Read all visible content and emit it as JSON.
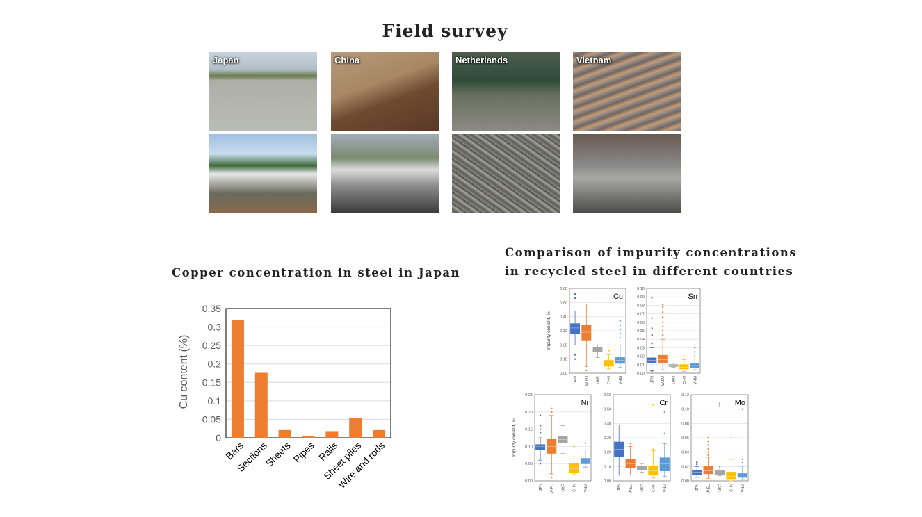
{
  "page": {
    "title": "Field survey",
    "photos": [
      {
        "caption": "Japan"
      },
      {
        "caption": "China"
      },
      {
        "caption": "Netherlands"
      },
      {
        "caption": "Vietnam"
      }
    ]
  },
  "left_section": {
    "title": "Copper concentration in steel in Japan"
  },
  "right_section": {
    "title_line1": "Comparison of impurity concentrations",
    "title_line2": "in recycled steel in different countries",
    "ylabel": "Impurity content, %"
  },
  "colors": {
    "bar": "#ED7D31",
    "JPN": "#4472C4",
    "WEU": "#ED7D31",
    "UKR": "#A5A5A5",
    "CHN": "#FFC000",
    "VNM": "#5B9BD5"
  },
  "chart_data": [
    {
      "type": "bar",
      "title": "",
      "categories": [
        "Bars",
        "Sections",
        "Sheets",
        "Pipes",
        "Rails",
        "Sheet piles",
        "Wire and rods"
      ],
      "values": [
        0.318,
        0.176,
        0.021,
        0.005,
        0.018,
        0.054,
        0.021
      ],
      "xlabel": "",
      "ylabel": "Cu content (%)",
      "ylim": [
        0,
        0.35
      ],
      "yticks": [
        "0",
        "0.05",
        "0.1",
        "0.15",
        "0.2",
        "0.25",
        "0.3",
        "0.35"
      ],
      "grid": true
    },
    {
      "type": "box",
      "label": "Cu",
      "ylim": [
        0,
        0.6
      ],
      "yticks": [
        "0.00",
        "0.10",
        "0.20",
        "0.30",
        "0.40",
        "0.50",
        "0.60"
      ],
      "categories": [
        "JPN",
        "WEU",
        "UKR",
        "CHN",
        "VNM"
      ],
      "boxes": [
        {
          "q1": 0.28,
          "median": 0.32,
          "q3": 0.35,
          "min": 0.2,
          "max": 0.44,
          "outliers": [
            0.53,
            0.56,
            0.1,
            0.13
          ]
        },
        {
          "q1": 0.23,
          "median": 0.29,
          "q3": 0.34,
          "min": 0.05,
          "max": 0.49,
          "outliers": [
            0.02,
            0.05
          ]
        },
        {
          "q1": 0.15,
          "median": 0.165,
          "q3": 0.18,
          "min": 0.11,
          "max": 0.2,
          "outliers": []
        },
        {
          "q1": 0.05,
          "median": 0.07,
          "q3": 0.09,
          "min": 0.03,
          "max": 0.13,
          "outliers": [
            0.16
          ]
        },
        {
          "q1": 0.07,
          "median": 0.09,
          "q3": 0.11,
          "min": 0.04,
          "max": 0.2,
          "outliers": [
            0.25,
            0.28,
            0.31,
            0.34,
            0.37
          ]
        }
      ]
    },
    {
      "type": "box",
      "label": "Sn",
      "ylim": [
        0,
        0.1
      ],
      "yticks": [
        "0.00",
        "0.01",
        "0.02",
        "0.03",
        "0.04",
        "0.05",
        "0.06",
        "0.07",
        "0.08",
        "0.09",
        "0.10"
      ],
      "categories": [
        "JPN",
        "WEU",
        "UKR",
        "CHN",
        "VNM"
      ],
      "boxes": [
        {
          "q1": 0.012,
          "median": 0.015,
          "q3": 0.018,
          "min": 0.003,
          "max": 0.03,
          "outliers": [
            0.035,
            0.045,
            0.053,
            0.065,
            0.089,
            0.002
          ]
        },
        {
          "q1": 0.012,
          "median": 0.016,
          "q3": 0.021,
          "min": 0.004,
          "max": 0.04,
          "outliers": [
            0.045,
            0.05,
            0.055,
            0.06,
            0.066,
            0.072,
            0.078,
            0.081
          ]
        },
        {
          "q1": 0.008,
          "median": 0.009,
          "q3": 0.01,
          "min": 0.007,
          "max": 0.012,
          "outliers": []
        },
        {
          "q1": 0.005,
          "median": 0.007,
          "q3": 0.01,
          "min": 0.002,
          "max": 0.016,
          "outliers": [
            0.02
          ]
        },
        {
          "q1": 0.007,
          "median": 0.009,
          "q3": 0.011,
          "min": 0.004,
          "max": 0.017,
          "outliers": [
            0.02,
            0.025,
            0.03
          ]
        }
      ]
    },
    {
      "type": "box",
      "label": "Ni",
      "ylim": [
        0,
        0.25
      ],
      "yticks": [
        "0.00",
        "0.05",
        "0.10",
        "0.15",
        "0.20",
        "0.25"
      ],
      "categories": [
        "JPN",
        "WEU",
        "UKR",
        "CHN",
        "VNM"
      ],
      "boxes": [
        {
          "q1": 0.09,
          "median": 0.1,
          "q3": 0.105,
          "min": 0.06,
          "max": 0.125,
          "outliers": [
            0.14,
            0.15,
            0.16,
            0.19,
            0.05
          ]
        },
        {
          "q1": 0.08,
          "median": 0.1,
          "q3": 0.12,
          "min": 0.02,
          "max": 0.19,
          "outliers": [
            0.2,
            0.21,
            0.01
          ]
        },
        {
          "q1": 0.11,
          "median": 0.12,
          "q3": 0.13,
          "min": 0.08,
          "max": 0.16,
          "outliers": []
        },
        {
          "q1": 0.025,
          "median": 0.035,
          "q3": 0.05,
          "min": 0.02,
          "max": 0.07,
          "outliers": [
            0.1
          ]
        },
        {
          "q1": 0.05,
          "median": 0.058,
          "q3": 0.065,
          "min": 0.04,
          "max": 0.09,
          "outliers": [
            0.11
          ]
        }
      ]
    },
    {
      "type": "box",
      "label": "Cr",
      "ylim": [
        0,
        0.6
      ],
      "yticks": [
        "0.00",
        "0.10",
        "0.20",
        "0.30",
        "0.40",
        "0.50",
        "0.60"
      ],
      "categories": [
        "JPN",
        "WEU",
        "UKR",
        "CHN",
        "VNM"
      ],
      "boxes": [
        {
          "q1": 0.17,
          "median": 0.22,
          "q3": 0.27,
          "min": 0.04,
          "max": 0.39,
          "outliers": []
        },
        {
          "q1": 0.09,
          "median": 0.12,
          "q3": 0.15,
          "min": 0.04,
          "max": 0.24,
          "outliers": [
            0.26
          ]
        },
        {
          "q1": 0.075,
          "median": 0.09,
          "q3": 0.1,
          "min": 0.06,
          "max": 0.12,
          "outliers": []
        },
        {
          "q1": 0.04,
          "median": 0.07,
          "q3": 0.1,
          "min": 0.02,
          "max": 0.21,
          "outliers": [
            0.22,
            0.53
          ]
        },
        {
          "q1": 0.07,
          "median": 0.12,
          "q3": 0.16,
          "min": 0.03,
          "max": 0.26,
          "outliers": [
            0.33,
            0.48,
            0.53
          ]
        }
      ]
    },
    {
      "type": "box",
      "label": "Mo",
      "ylim": [
        0,
        0.12
      ],
      "yticks": [
        "0.00",
        "0.02",
        "0.04",
        "0.06",
        "0.08",
        "0.10",
        "0.12"
      ],
      "categories": [
        "JPN",
        "WEU",
        "UKR",
        "CHN",
        "VNM"
      ],
      "boxes": [
        {
          "q1": 0.009,
          "median": 0.012,
          "q3": 0.014,
          "min": 0.005,
          "max": 0.02,
          "outliers": [
            0.023,
            0.026
          ]
        },
        {
          "q1": 0.01,
          "median": 0.014,
          "q3": 0.02,
          "min": 0.003,
          "max": 0.033,
          "outliers": [
            0.036,
            0.04,
            0.045,
            0.05,
            0.055,
            0.06
          ]
        },
        {
          "q1": 0.009,
          "median": 0.011,
          "q3": 0.014,
          "min": 0.007,
          "max": 0.018,
          "outliers": [
            0.02,
            0.105,
            0.108
          ]
        },
        {
          "q1": 0.002,
          "median": 0.006,
          "q3": 0.012,
          "min": 0.0,
          "max": 0.03,
          "outliers": [
            0.06
          ]
        },
        {
          "q1": 0.005,
          "median": 0.008,
          "q3": 0.01,
          "min": 0.002,
          "max": 0.018,
          "outliers": [
            0.02,
            0.025,
            0.03,
            0.1
          ]
        }
      ]
    }
  ]
}
